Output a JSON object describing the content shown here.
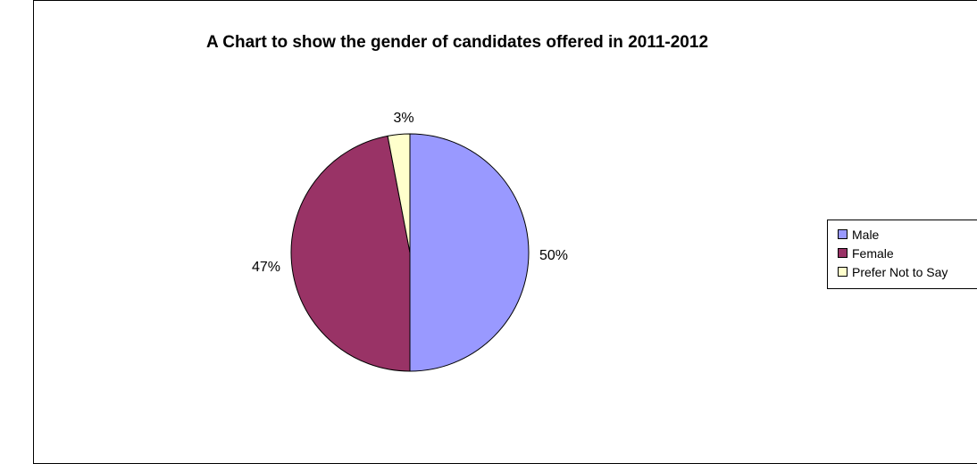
{
  "chart_data": {
    "type": "pie",
    "title": "A Chart to show the gender of candidates offered in 2011-2012",
    "categories": [
      "Male",
      "Female",
      "Prefer Not to Say"
    ],
    "values": [
      50,
      47,
      3
    ],
    "labels": [
      "50%",
      "47%",
      "3%"
    ],
    "colors": [
      "#9999ff",
      "#993366",
      "#ffffcc"
    ],
    "legend_position": "right"
  }
}
